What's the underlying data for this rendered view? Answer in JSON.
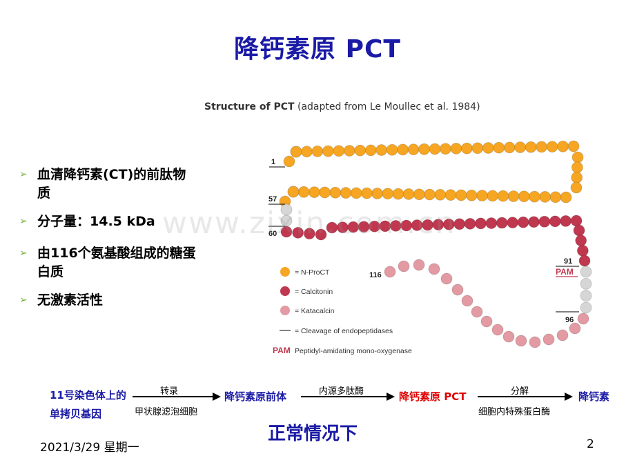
{
  "title": "降钙素原 PCT",
  "figure": {
    "heading_bold": "Structure of PCT",
    "heading_rest": " (adapted from Le Moullec et al. 1984)",
    "legend": [
      {
        "label": "= N-ProCT",
        "color": "#f6a623"
      },
      {
        "label": "= Calcitonin",
        "color": "#c0384f"
      },
      {
        "label": "= Katacalcin",
        "color": "#e39aa2"
      },
      {
        "label": "= Cleavage of endopeptidases",
        "color": "#333333"
      },
      {
        "label": "Peptidyl-amidating mono-oxygenase",
        "color": "#c0384f"
      }
    ],
    "pam_abbr": "PAM",
    "position_labels": [
      "1",
      "57",
      "60",
      "91",
      "96",
      "116"
    ]
  },
  "bullets": [
    "血清降钙素(CT)的前肽物质",
    "分子量：14.5 kDa",
    "由116个氨基酸组成的糖蛋白质",
    "无激素活性"
  ],
  "flow": {
    "step1": "11号染色体上的单拷贝基因",
    "arrow1_top": "转录",
    "arrow1_bottom": "甲状腺滤泡细胞",
    "step2": "降钙素原前体",
    "arrow2_top": "内源多肽酶",
    "step3": "降钙素原 PCT",
    "arrow3_top": "分解",
    "arrow3_bottom": "细胞内特殊蛋白酶",
    "step4": "降钙素"
  },
  "normal_label": "正常情况下",
  "footer": {
    "date": "2021/3/29 星期一",
    "page": "2"
  },
  "watermark": "www.zixin.com.cn",
  "colors": {
    "title": "#1a1aa6",
    "flow_blue": "#1a1aa6",
    "flow_red": "#e00000",
    "orange_bead": "#f6a623",
    "calcitonin": "#c0384f",
    "katacalcin": "#e39aa2",
    "bullet_arrow": "#7cb342"
  }
}
